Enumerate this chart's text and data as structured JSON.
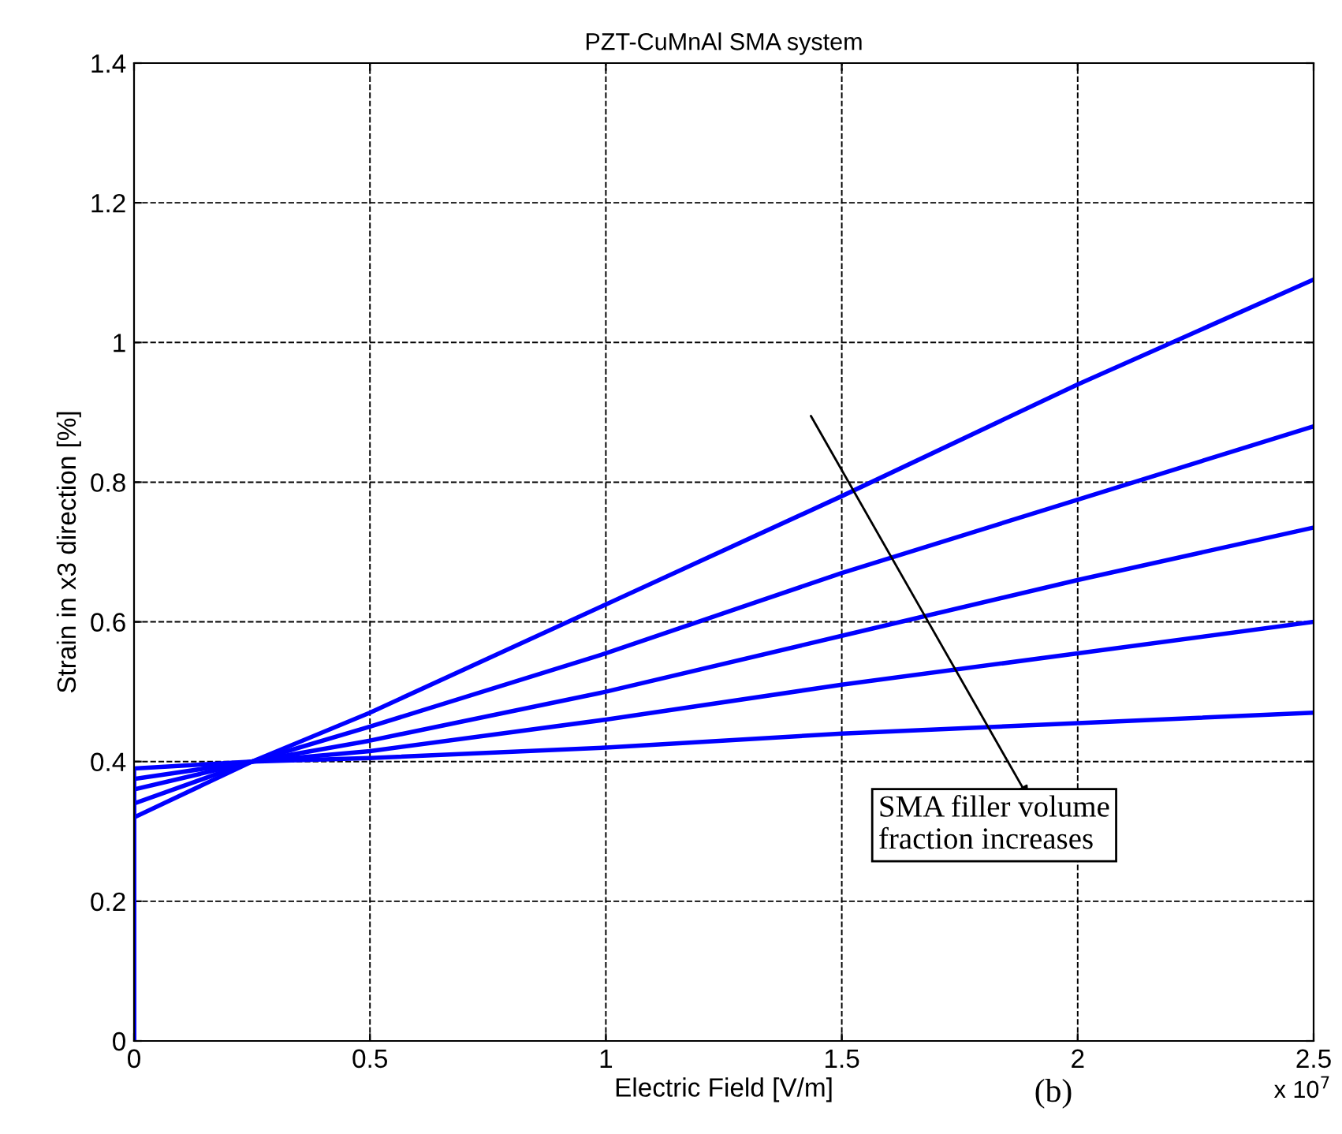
{
  "chart_data": {
    "type": "line",
    "title": "PZT-CuMnAl SMA system",
    "xlabel": "Electric Field [V/m]",
    "ylabel": "Strain in x3 direction [%]",
    "xlim": [
      0,
      2.5
    ],
    "xticks": [
      0,
      0.5,
      1,
      1.5,
      2,
      2.5
    ],
    "ylim": [
      0,
      1.4
    ],
    "yticks": [
      0,
      0.2,
      0.4,
      0.6,
      0.8,
      1,
      1.2,
      1.4
    ],
    "grid": true,
    "line_style": "solid",
    "marker": "none",
    "x": [
      0,
      0,
      0.25,
      0.5,
      1,
      1.5,
      2,
      2.5
    ],
    "series": [
      {
        "color": "#0000ff",
        "values": [
          0,
          0.32,
          0.4,
          0.47,
          0.625,
          0.78,
          0.94,
          1.09
        ]
      },
      {
        "color": "#0000ff",
        "values": [
          0,
          0.34,
          0.4,
          0.45,
          0.555,
          0.67,
          0.775,
          0.88
        ]
      },
      {
        "color": "#0000ff",
        "values": [
          0,
          0.36,
          0.4,
          0.43,
          0.5,
          0.58,
          0.66,
          0.735
        ]
      },
      {
        "color": "#0000ff",
        "values": [
          0,
          0.375,
          0.4,
          0.415,
          0.46,
          0.51,
          0.555,
          0.6
        ]
      },
      {
        "color": "#0000ff",
        "values": [
          0,
          0.39,
          0.4,
          0.405,
          0.42,
          0.44,
          0.455,
          0.47
        ]
      }
    ],
    "annotations": [
      "SMA filler volume\nfraction increases",
      "x 10$^{7}$",
      "(b)"
    ]
  }
}
